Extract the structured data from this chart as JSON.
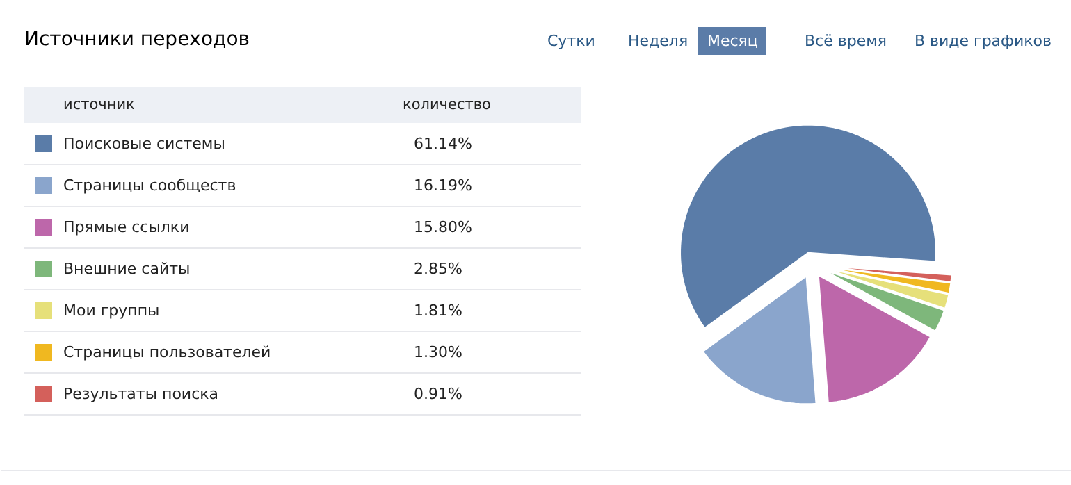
{
  "chart_data": {
    "type": "pie",
    "title": "Источники переходов",
    "categories": [
      "Поисковые системы",
      "Страницы сообществ",
      "Прямые ссылки",
      "Внешние сайты",
      "Мои группы",
      "Страницы пользователей",
      "Результаты поиска"
    ],
    "values": [
      61.14,
      16.19,
      15.8,
      2.85,
      1.81,
      1.3,
      0.91
    ],
    "colors": [
      "#5a7ca8",
      "#8aa5cc",
      "#bd67aa",
      "#7eb77b",
      "#e6e07a",
      "#f0b820",
      "#d4605b"
    ],
    "value_labels": [
      "61.14%",
      "16.19%",
      "15.80%",
      "2.85%",
      "1.81%",
      "1.30%",
      "0.91%"
    ],
    "legend": "left",
    "annotations": [
      "источник",
      "количество",
      "Сутки",
      "Неделя",
      "Месяц",
      "Всё время",
      "В виде графиков"
    ]
  }
}
